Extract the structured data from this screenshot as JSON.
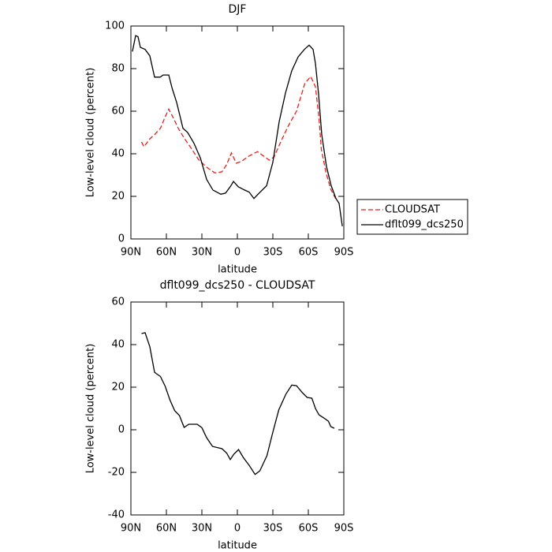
{
  "chart_data": [
    {
      "type": "line",
      "title": "DJF",
      "x_label": "latitude",
      "y_label": "Low-level cloud (percent)",
      "xlim": [
        90,
        -90
      ],
      "ylim": [
        0,
        100
      ],
      "xticks": [
        {
          "value": 90,
          "label": "90N"
        },
        {
          "value": 60,
          "label": "60N"
        },
        {
          "value": 30,
          "label": "30N"
        },
        0,
        {
          "value": -30,
          "label": "30S"
        },
        {
          "value": -60,
          "label": "60S"
        },
        {
          "value": -90,
          "label": "90S"
        }
      ],
      "yticks": [
        0,
        20,
        40,
        60,
        80,
        100
      ],
      "legend": "right",
      "series": [
        {
          "name": "CLOUDSAT",
          "color": "#e8201c",
          "style": "dashed",
          "x": [
            81,
            79,
            74,
            70,
            65,
            61,
            58,
            54,
            50,
            45,
            39,
            33,
            26,
            19,
            13,
            9,
            5,
            1,
            -3,
            -10,
            -17,
            -22,
            -27,
            -31,
            -37,
            -43,
            -50,
            -57,
            -62,
            -66,
            -69,
            -71,
            -75,
            -79,
            -83
          ],
          "values": [
            45.5,
            43.3,
            47,
            49,
            52,
            57.4,
            61,
            56.7,
            52,
            47.4,
            42.6,
            37.4,
            33.7,
            31,
            31.5,
            35,
            40.4,
            35.6,
            36.3,
            39,
            41,
            39,
            37,
            38.5,
            46,
            53,
            60,
            73,
            76.3,
            71.5,
            56.7,
            42,
            31,
            23.3,
            19
          ]
        },
        {
          "name": "dflt099_dcs250",
          "color": "#000000",
          "style": "solid",
          "x": [
            88.7,
            86,
            84,
            82,
            78,
            74,
            70,
            65.3,
            62.7,
            58,
            55.3,
            51.3,
            46,
            42,
            36.7,
            31.3,
            26,
            20.7,
            14,
            10,
            6,
            3.3,
            -0.7,
            -6,
            -10,
            -14,
            -19.3,
            -24.7,
            -30,
            -35.3,
            -40.7,
            -46,
            -51.3,
            -56.7,
            -60.7,
            -64,
            -66,
            -68.7,
            -71.3,
            -75.3,
            -79.3,
            -83.3,
            -86,
            -88.7
          ],
          "values": [
            88,
            95.5,
            95,
            90,
            89,
            86,
            76,
            76,
            77,
            77,
            71,
            64,
            52,
            50,
            45,
            38,
            28,
            23,
            21,
            21.5,
            24.5,
            27,
            24.5,
            23,
            22,
            19,
            22,
            25,
            36,
            55,
            68.5,
            79,
            85.5,
            89,
            91,
            89,
            82.5,
            68,
            49,
            34,
            25,
            19,
            16.7,
            6
          ]
        }
      ]
    },
    {
      "type": "line",
      "title": "dflt099_dcs250 - CLOUDSAT",
      "x_label": "latitude",
      "y_label": "Low-level cloud (percent)",
      "xlim": [
        90,
        -90
      ],
      "ylim": [
        -40,
        60
      ],
      "xticks": [
        {
          "value": 90,
          "label": "90N"
        },
        {
          "value": 60,
          "label": "60N"
        },
        {
          "value": 30,
          "label": "30N"
        },
        0,
        {
          "value": -30,
          "label": "30S"
        },
        {
          "value": -60,
          "label": "60S"
        },
        {
          "value": -90,
          "label": "90S"
        }
      ],
      "yticks": [
        -40,
        -20,
        0,
        20,
        40,
        60
      ],
      "series": [
        {
          "color": "#000000",
          "style": "solid",
          "x": [
            81,
            78,
            74,
            70,
            65,
            61,
            57,
            53,
            49,
            45,
            41,
            34,
            30,
            26,
            21,
            13,
            9,
            6,
            3,
            -1,
            -5,
            -10,
            -15,
            -19,
            -25,
            -30,
            -35,
            -41,
            -46,
            -50,
            -55,
            -59,
            -63,
            -66,
            -69,
            -73,
            -77,
            -79,
            -82
          ],
          "values": [
            45.2,
            45.6,
            39,
            27,
            25,
            20.4,
            14,
            9,
            6.7,
            1.1,
            2.6,
            2.6,
            1,
            -3.7,
            -7.8,
            -8.9,
            -11,
            -14,
            -11.5,
            -9.3,
            -13,
            -16.7,
            -21,
            -19.3,
            -12.2,
            -1.1,
            9.3,
            16.7,
            21,
            20.7,
            17.4,
            15.2,
            14.8,
            10,
            7,
            5.6,
            4,
            1.5,
            0.7
          ]
        }
      ]
    }
  ]
}
